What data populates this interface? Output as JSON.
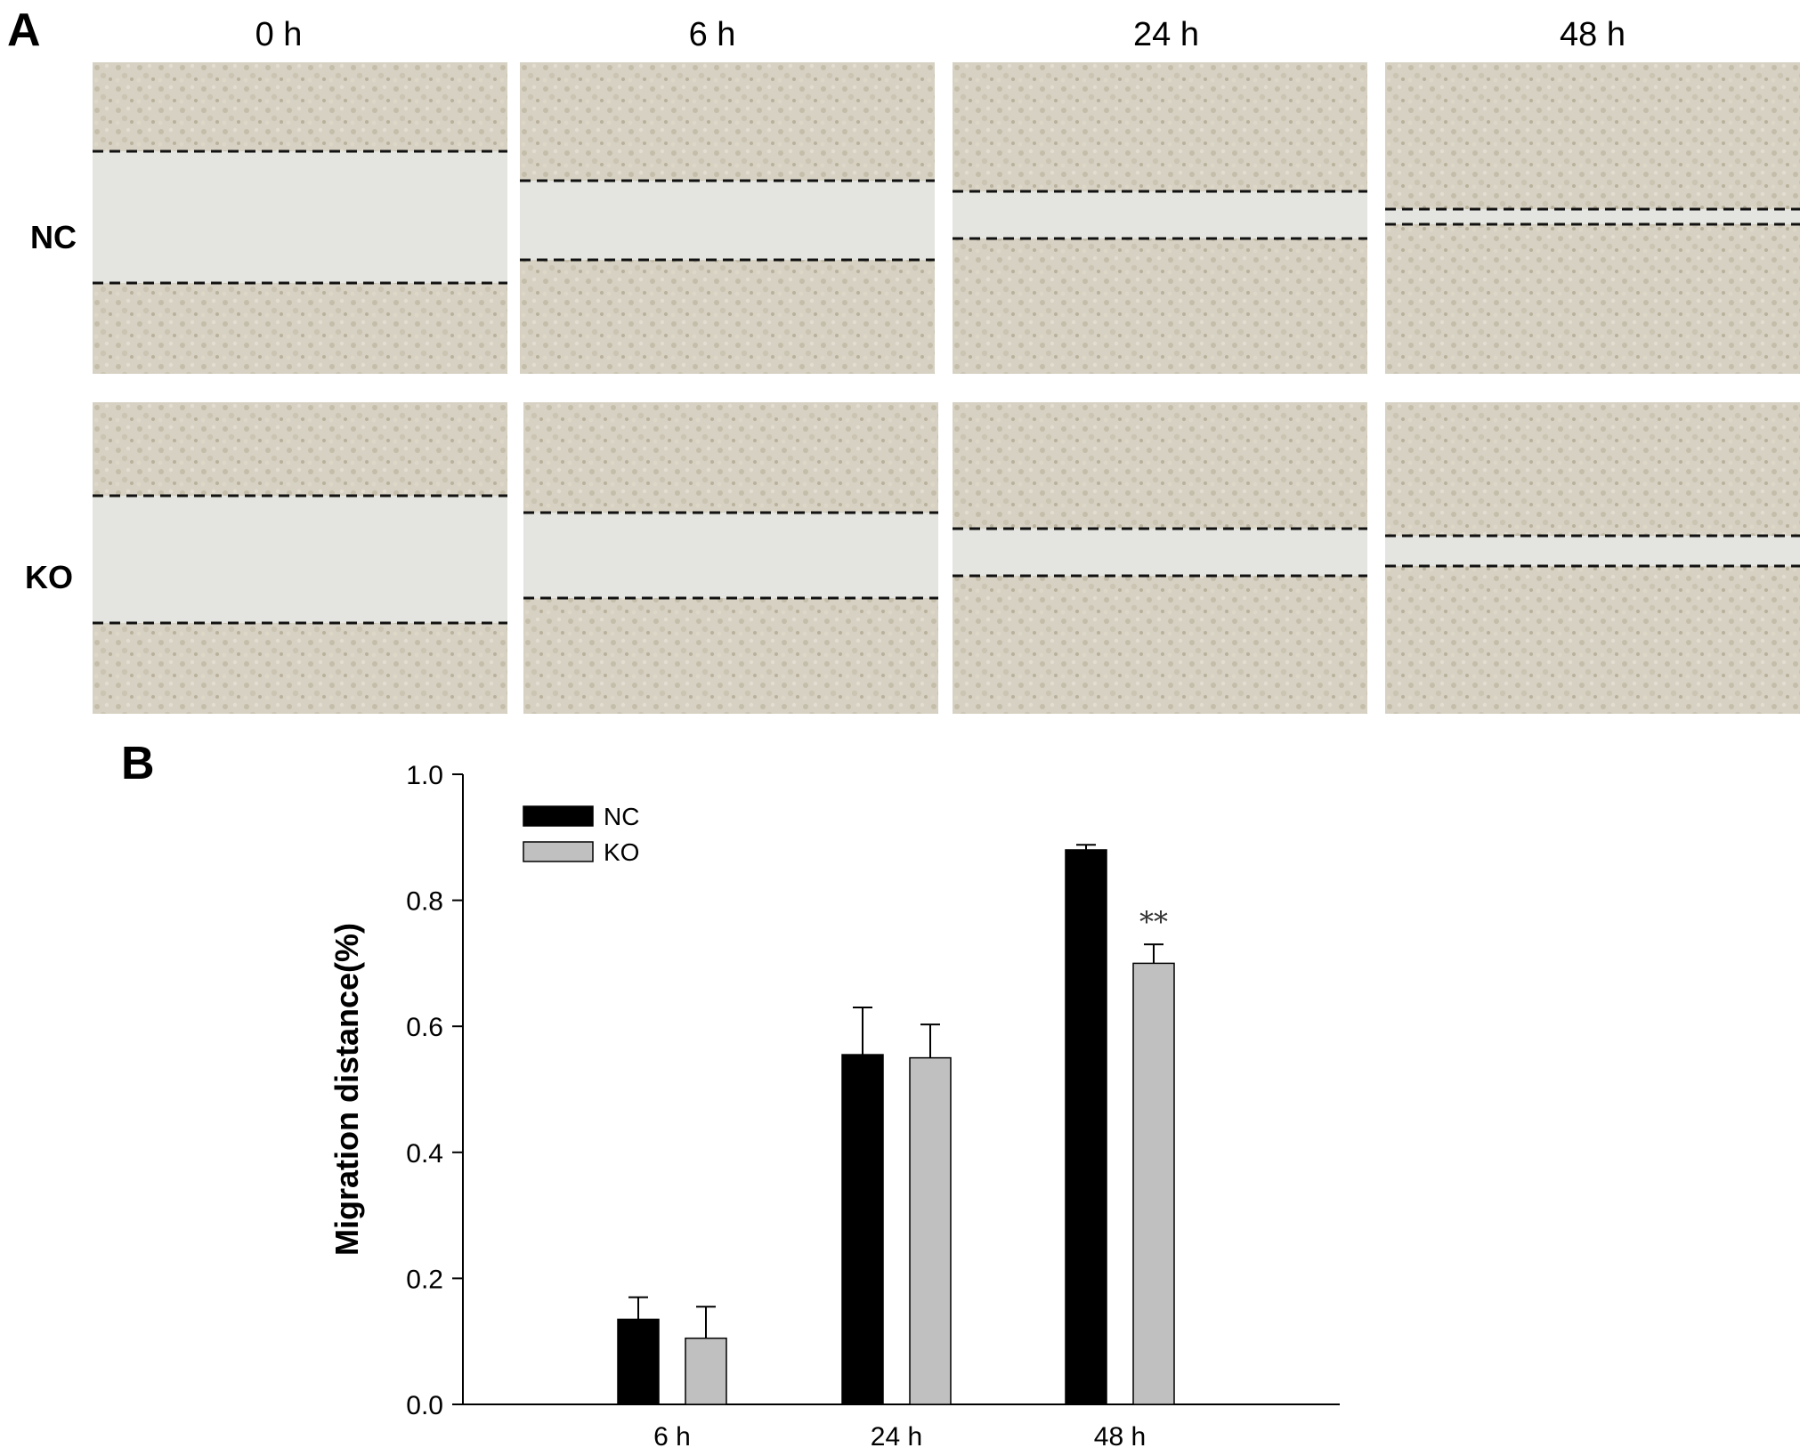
{
  "panel_a": {
    "letter": "A",
    "columns": [
      "0 h",
      "6 h",
      "24 h",
      "48 h"
    ],
    "rows": [
      "NC",
      "KO"
    ]
  },
  "panel_b": {
    "letter": "B"
  },
  "colors": {
    "nc": "#000000",
    "ko": "#c0c0c0",
    "cells": "#d6d1c2",
    "gap": "#e4e5e0"
  },
  "chart_data": {
    "type": "bar",
    "categories": [
      "6 h",
      "24 h",
      "48 h"
    ],
    "series": [
      {
        "name": "NC",
        "values": [
          0.135,
          0.555,
          0.88
        ],
        "errors": [
          0.035,
          0.075,
          0.008
        ]
      },
      {
        "name": "KO",
        "values": [
          0.105,
          0.55,
          0.7
        ],
        "errors": [
          0.05,
          0.053,
          0.03
        ]
      }
    ],
    "annotations": [
      {
        "category": "48 h",
        "series": "KO",
        "text": "**"
      }
    ],
    "xlabel": "",
    "ylabel": "Migration distance(%)",
    "ylim": [
      0,
      1.0
    ],
    "yticks": [
      "0.0",
      "0.2",
      "0.4",
      "0.6",
      "0.8",
      "1.0"
    ],
    "legend": "top-left",
    "grid": false
  }
}
